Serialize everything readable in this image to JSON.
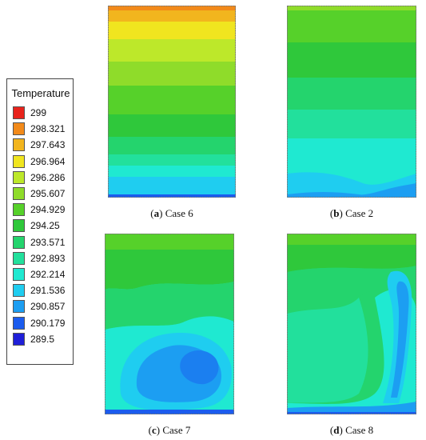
{
  "legend": {
    "title": "Temperature",
    "levels": [
      {
        "label": "299",
        "color": "#e8231c"
      },
      {
        "label": "298.321",
        "color": "#f28a1a"
      },
      {
        "label": "297.643",
        "color": "#f2b51e"
      },
      {
        "label": "296.964",
        "color": "#f0e51f"
      },
      {
        "label": "296.286",
        "color": "#bde82a"
      },
      {
        "label": "295.607",
        "color": "#8fdc2a"
      },
      {
        "label": "294.929",
        "color": "#56d12a"
      },
      {
        "label": "294.25",
        "color": "#2fc83b"
      },
      {
        "label": "293.571",
        "color": "#24d46d"
      },
      {
        "label": "292.893",
        "color": "#22e09c"
      },
      {
        "label": "292.214",
        "color": "#1fe9d1"
      },
      {
        "label": "291.536",
        "color": "#1fcdf0"
      },
      {
        "label": "290.857",
        "color": "#1c9ef2"
      },
      {
        "label": "290.179",
        "color": "#1b5cee"
      },
      {
        "label": "289.5",
        "color": "#1f1fd8"
      }
    ]
  },
  "panels": [
    {
      "id": "a",
      "letter": "a",
      "caption": " Case 6"
    },
    {
      "id": "b",
      "letter": "b",
      "caption": " Case 2"
    },
    {
      "id": "c",
      "letter": "c",
      "caption": " Case 7"
    },
    {
      "id": "d",
      "letter": "d",
      "caption": " Case 8"
    }
  ]
}
